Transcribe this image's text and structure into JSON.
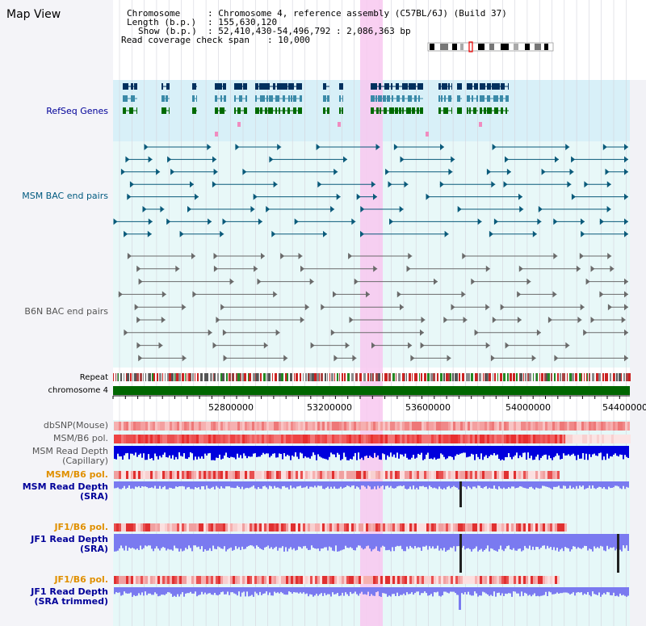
{
  "title": "Map View",
  "info": {
    "chromosome_label": "Chromosome",
    "chromosome_value": ": Chromosome 4, reference assembly (C57BL/6J) (Build 37)",
    "length_label": "Length (b.p.)",
    "length_value": ": 155,630,120",
    "show_label": "Show (b.p.)",
    "show_value": ": 52,410,430-54,496,792 : 2,086,363 bp",
    "coverage_label": "Read coverage check span",
    "coverage_value": ": 10,000"
  },
  "tracks": {
    "refseq": "RefSeq Genes",
    "msm_bac": "MSM BAC end pairs",
    "b6n_bac": "B6N BAC end pairs",
    "repeat": "Repeat",
    "chromosome": "chromosome 4",
    "dbsnp": "dbSNP(Mouse)",
    "msm_b6_pol_1": "MSM/B6 pol.",
    "msm_read_depth_cap_1": "MSM Read Depth",
    "msm_read_depth_cap_2": "(Capillary)",
    "msm_b6_pol_2": "MSM/B6 pol.",
    "msm_read_depth_sra_1": "MSM Read Depth",
    "msm_read_depth_sra_2": "(SRA)",
    "jf1_b6_pol_1": "JF1/B6 pol.",
    "jf1_read_depth_sra_1": "JF1 Read Depth",
    "jf1_read_depth_sra_2": "(SRA)",
    "jf1_b6_pol_2": "JF1/B6 pol.",
    "jf1_read_depth_trim_1": "JF1 Read Depth",
    "jf1_read_depth_trim_2": "(SRA trimmed)"
  },
  "axis": {
    "ticks": [
      "52800000",
      "53200000",
      "53600000",
      "54000000",
      "54400000"
    ]
  },
  "colors": {
    "refseq_bg": "#d8f0f8",
    "bac_bg": "#e4f8f8",
    "gene_navy": "#00305e",
    "gene_teal": "#3a8aa8",
    "gene_green": "#006a00",
    "msm_bac": "#0a5a7a",
    "b6n_bac": "#6a6a6a",
    "highlight": "#f8c8f0",
    "chrom_bar": "#006600",
    "label_navy": "#000099",
    "label_teal": "#005a80",
    "label_orange": "#e09000",
    "depth_blue": "#0000dd",
    "depth_light": "#7a7af0"
  }
}
